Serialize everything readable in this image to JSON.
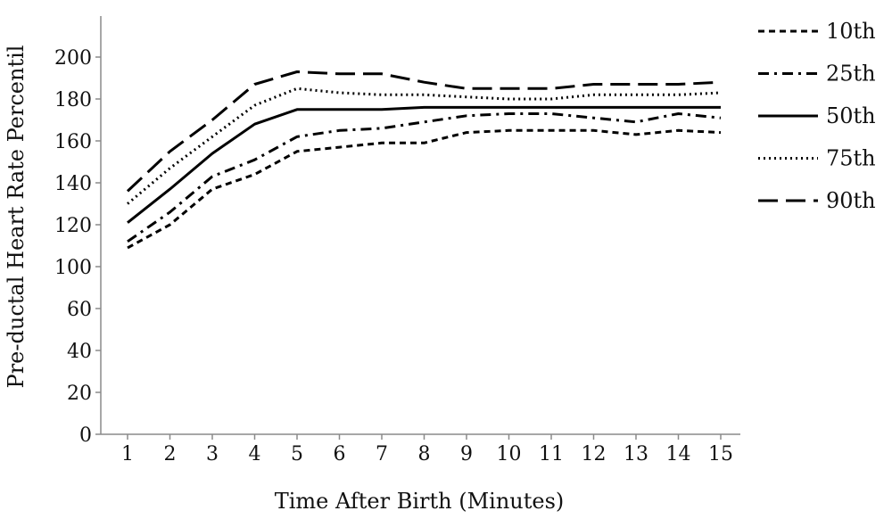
{
  "chart_data": {
    "type": "line",
    "xlabel": "Time After Birth (Minutes)",
    "ylabel": "Pre-ductal Heart Rate Percentil",
    "x": [
      1,
      2,
      3,
      4,
      5,
      6,
      7,
      8,
      9,
      10,
      11,
      12,
      13,
      14,
      15
    ],
    "x_tick_labels": [
      "1",
      "2",
      "3",
      "4",
      "5",
      "6",
      "7",
      "8",
      "9",
      "10",
      "11",
      "12",
      "13",
      "14",
      "15"
    ],
    "y_tick_labels": [
      "0",
      "20",
      "40",
      "60",
      "100",
      "120",
      "140",
      "160",
      "180",
      "200"
    ],
    "grid": false,
    "legend_position": "right",
    "series": [
      {
        "name": "10th",
        "dash": "dashed",
        "values": [
          109,
          120,
          137,
          144,
          155,
          157,
          159,
          159,
          164,
          165,
          165,
          165,
          163,
          165,
          164
        ]
      },
      {
        "name": "25th",
        "dash": "dashdot",
        "values": [
          112,
          126,
          143,
          151,
          162,
          165,
          166,
          169,
          172,
          173,
          173,
          171,
          169,
          173,
          171
        ]
      },
      {
        "name": "50th",
        "dash": "solid",
        "values": [
          121,
          137,
          154,
          168,
          175,
          175,
          175,
          176,
          176,
          176,
          176,
          176,
          176,
          176,
          176
        ]
      },
      {
        "name": "75th",
        "dash": "dotted",
        "values": [
          130,
          147,
          162,
          177,
          185,
          183,
          182,
          182,
          181,
          180,
          180,
          182,
          182,
          182,
          183
        ]
      },
      {
        "name": "90th",
        "dash": "longdash",
        "values": [
          136,
          155,
          170,
          187,
          193,
          192,
          192,
          188,
          185,
          185,
          185,
          187,
          187,
          187,
          188
        ]
      }
    ]
  }
}
